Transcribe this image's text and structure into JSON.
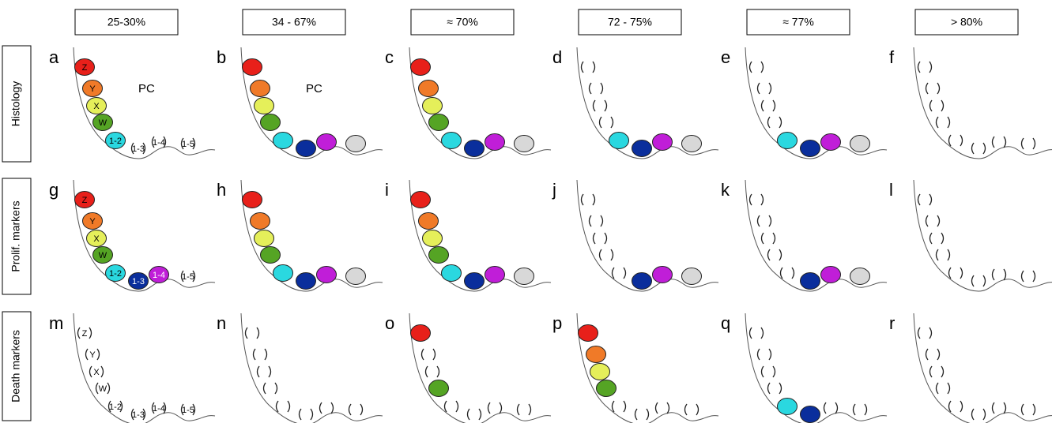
{
  "column_headers": [
    "25-30%",
    "34 - 67%",
    "≈ 70%",
    "72 - 75%",
    "≈ 77%",
    "> 80%"
  ],
  "row_labels": [
    "Histology",
    "Prolif. markers",
    "Death markers"
  ],
  "panels": [
    {
      "letter": "a",
      "labels": [
        "Z",
        "Y",
        "X",
        "W",
        "1-2",
        "1-3",
        "1-4",
        "1-5"
      ],
      "annotation": "PC"
    },
    {
      "letter": "b",
      "annotation": "PC"
    },
    {
      "letter": "c"
    },
    {
      "letter": "d"
    },
    {
      "letter": "e"
    },
    {
      "letter": "f"
    },
    {
      "letter": "g",
      "labels": [
        "Z",
        "Y",
        "X",
        "W",
        "1-2",
        "1-3",
        "1-4",
        "1-5"
      ]
    },
    {
      "letter": "h"
    },
    {
      "letter": "i"
    },
    {
      "letter": "j"
    },
    {
      "letter": "k"
    },
    {
      "letter": "l"
    },
    {
      "letter": "m",
      "labels": [
        "Z",
        "Y",
        "X",
        "W",
        "1-2",
        "1-3",
        "1-4",
        "1-5"
      ]
    },
    {
      "letter": "n"
    },
    {
      "letter": "o"
    },
    {
      "letter": "p"
    },
    {
      "letter": "q"
    },
    {
      "letter": "r"
    }
  ]
}
